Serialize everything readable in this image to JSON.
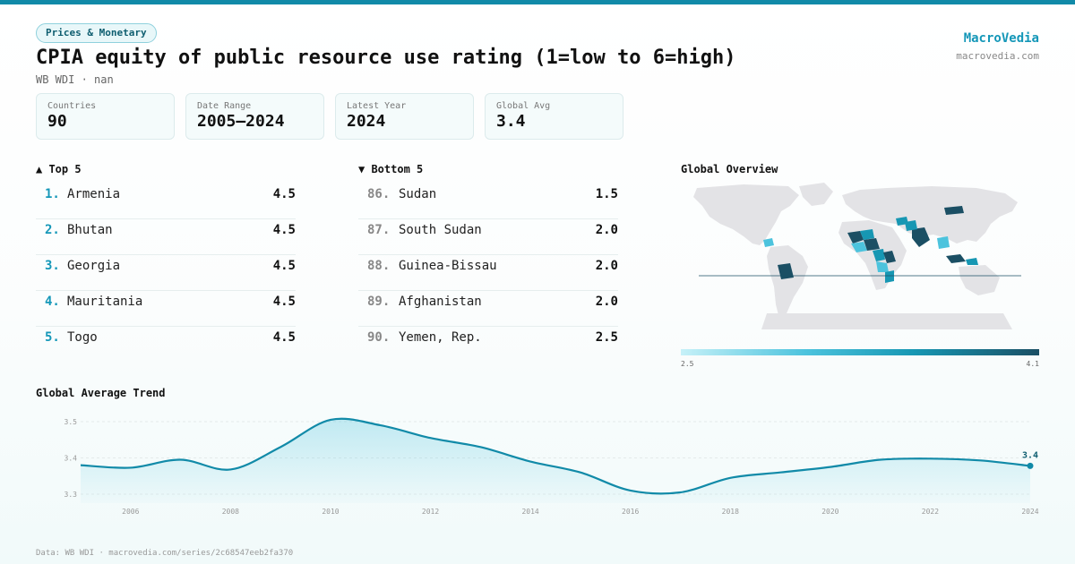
{
  "header": {
    "category": "Prices & Monetary",
    "title": "CPIA equity of public resource use rating (1=low to 6=high)",
    "subtitle": "WB WDI · nan",
    "brand_name": "MacroVedia",
    "brand_url": "macrovedia.com"
  },
  "stats": [
    {
      "label": "Countries",
      "value": "90"
    },
    {
      "label": "Date Range",
      "value": "2005–2024"
    },
    {
      "label": "Latest Year",
      "value": "2024"
    },
    {
      "label": "Global Avg",
      "value": "3.4"
    }
  ],
  "top5": {
    "header": "▲ Top 5",
    "items": [
      {
        "rank": "1.",
        "name": "Armenia",
        "value": "4.5"
      },
      {
        "rank": "2.",
        "name": "Bhutan",
        "value": "4.5"
      },
      {
        "rank": "3.",
        "name": "Georgia",
        "value": "4.5"
      },
      {
        "rank": "4.",
        "name": "Mauritania",
        "value": "4.5"
      },
      {
        "rank": "5.",
        "name": "Togo",
        "value": "4.5"
      }
    ]
  },
  "bottom5": {
    "header": "▼ Bottom 5",
    "items": [
      {
        "rank": "86.",
        "name": "Sudan",
        "value": "1.5"
      },
      {
        "rank": "87.",
        "name": "South Sudan",
        "value": "2.0"
      },
      {
        "rank": "88.",
        "name": "Guinea-Bissau",
        "value": "2.0"
      },
      {
        "rank": "89.",
        "name": "Afghanistan",
        "value": "2.0"
      },
      {
        "rank": "90.",
        "name": "Yemen, Rep.",
        "value": "2.5"
      }
    ]
  },
  "map": {
    "header": "Global Overview",
    "legend_min": "2.5",
    "legend_max": "4.1",
    "colors": {
      "land": "#e3e3e6",
      "low": "#c6f1f8",
      "mid": "#4cc3dd",
      "high": "#1797b3",
      "dark": "#1b4f64"
    }
  },
  "trend": {
    "header": "Global Average Trend",
    "last_label": "3.4"
  },
  "chart_data": {
    "type": "area",
    "title": "Global Average Trend",
    "xlabel": "",
    "ylabel": "",
    "x": [
      2005,
      2006,
      2007,
      2008,
      2009,
      2010,
      2011,
      2012,
      2013,
      2014,
      2015,
      2016,
      2017,
      2018,
      2019,
      2020,
      2021,
      2022,
      2023,
      2024
    ],
    "values": [
      3.38,
      3.373,
      3.395,
      3.368,
      3.43,
      3.505,
      3.49,
      3.455,
      3.43,
      3.39,
      3.36,
      3.31,
      3.305,
      3.345,
      3.36,
      3.375,
      3.395,
      3.398,
      3.393,
      3.378
    ],
    "xticks": [
      "2006",
      "2008",
      "2010",
      "2012",
      "2014",
      "2016",
      "2018",
      "2020",
      "2022",
      "2024"
    ],
    "yticks": [
      "3.3",
      "3.4",
      "3.5"
    ],
    "ylim": [
      3.3,
      3.5
    ],
    "xlim": [
      2005,
      2024
    ],
    "grid": true,
    "color": "#118aa8"
  },
  "footer": "Data: WB WDI · macrovedia.com/series/2c68547eeb2fa370"
}
